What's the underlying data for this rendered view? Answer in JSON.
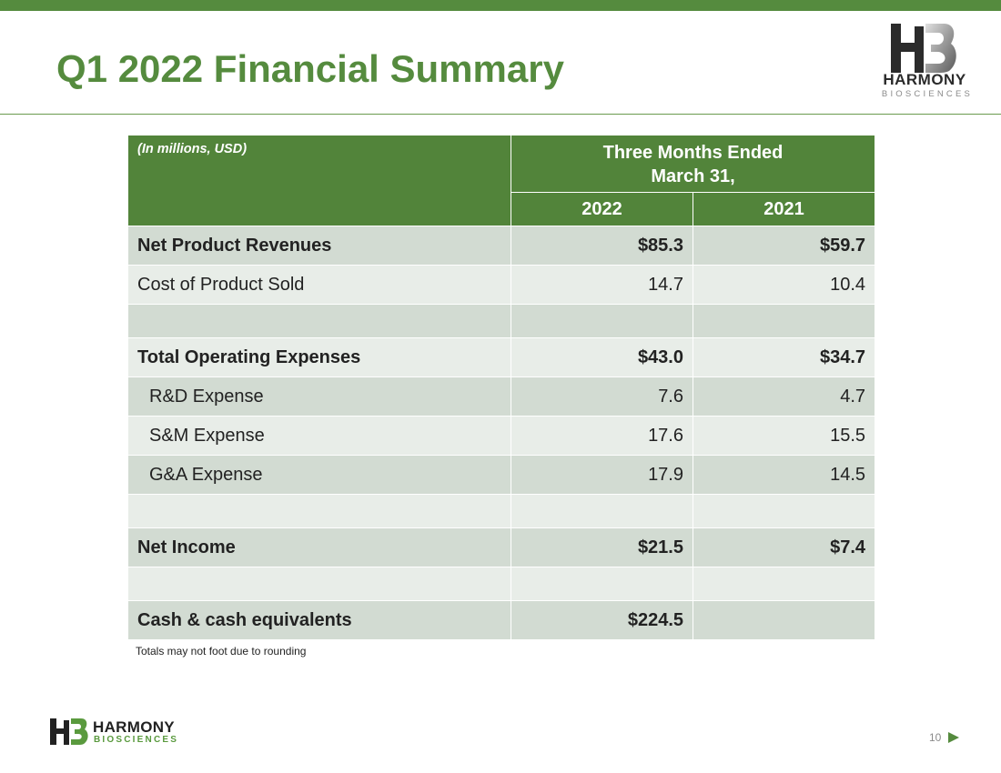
{
  "page": {
    "title": "Q1 2022 Financial Summary",
    "page_number": "10"
  },
  "brand": {
    "name": "HARMONY",
    "subname": "BIOSCIENCES",
    "accent_color": "#558b3e",
    "header_green": "#52843a",
    "row_dark": "#d2dbd2",
    "row_light": "#e8ede8"
  },
  "table": {
    "units": "(In millions, USD)",
    "period_line1": "Three Months Ended",
    "period_line2": "March 31,",
    "years": [
      "2022",
      "2021"
    ],
    "rows": [
      {
        "label": "Net Product Revenues",
        "v2022": "$85.3",
        "v2021": "$59.7"
      },
      {
        "label": "Cost of Product Sold",
        "v2022": "14.7",
        "v2021": "10.4"
      },
      {
        "label": "",
        "v2022": "",
        "v2021": ""
      },
      {
        "label": "Total Operating Expenses",
        "v2022": "$43.0",
        "v2021": "$34.7"
      },
      {
        "label": "R&D Expense",
        "v2022": "7.6",
        "v2021": "4.7"
      },
      {
        "label": "S&M Expense",
        "v2022": "17.6",
        "v2021": "15.5"
      },
      {
        "label": "G&A Expense",
        "v2022": "17.9",
        "v2021": "14.5"
      },
      {
        "label": "",
        "v2022": "",
        "v2021": ""
      },
      {
        "label": "Net Income",
        "v2022": "$21.5",
        "v2021": "$7.4"
      },
      {
        "label": "",
        "v2022": "",
        "v2021": ""
      },
      {
        "label": "Cash & cash equivalents",
        "v2022": "$224.5",
        "v2021": ""
      }
    ]
  },
  "footnote": "Totals may not foot due to rounding",
  "icons": {
    "header_logo": "harmony-hb-logo-icon",
    "footer_logo": "harmony-hb-logo-icon",
    "next": "triangle-right-icon"
  }
}
